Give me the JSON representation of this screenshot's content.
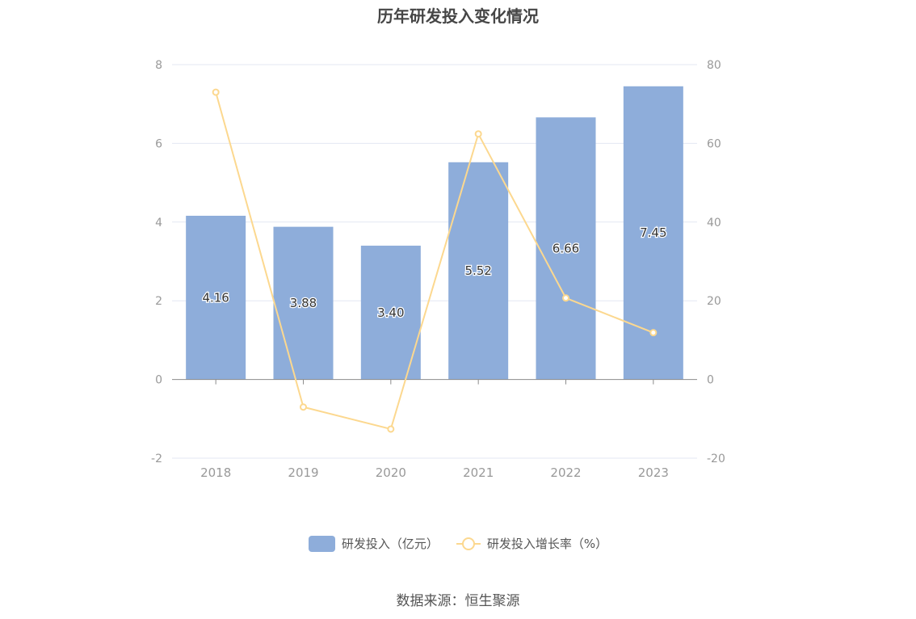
{
  "title": "历年研发投入变化情况",
  "source": "数据来源：恒生聚源",
  "legend": {
    "bar_label": "研发投入（亿元）",
    "line_label": "研发投入增长率（%）"
  },
  "colors": {
    "bar": "#8eadda",
    "line": "#fcd88f",
    "grid": "#e3e7f3",
    "axis_text": "#999999"
  },
  "chart_data": {
    "type": "bar",
    "categories": [
      "2018",
      "2019",
      "2020",
      "2021",
      "2022",
      "2023"
    ],
    "series": [
      {
        "name": "研发投入（亿元）",
        "type": "bar",
        "axis": "left",
        "values": [
          4.16,
          3.88,
          3.4,
          5.52,
          6.66,
          7.45
        ],
        "labels": [
          "4.16",
          "3.88",
          "3.40",
          "5.52",
          "6.66",
          "7.45"
        ]
      },
      {
        "name": "研发投入增长率（%）",
        "type": "line",
        "axis": "right",
        "values": [
          73,
          -7,
          -12.6,
          62.4,
          20.7,
          11.9
        ]
      }
    ],
    "y_left": {
      "min": -2,
      "max": 8,
      "ticks": [
        -2,
        0,
        2,
        4,
        6,
        8
      ]
    },
    "y_right": {
      "min": -20,
      "max": 80,
      "ticks": [
        -20,
        0,
        20,
        40,
        60,
        80
      ]
    },
    "grid": true,
    "legend_position": "bottom"
  }
}
